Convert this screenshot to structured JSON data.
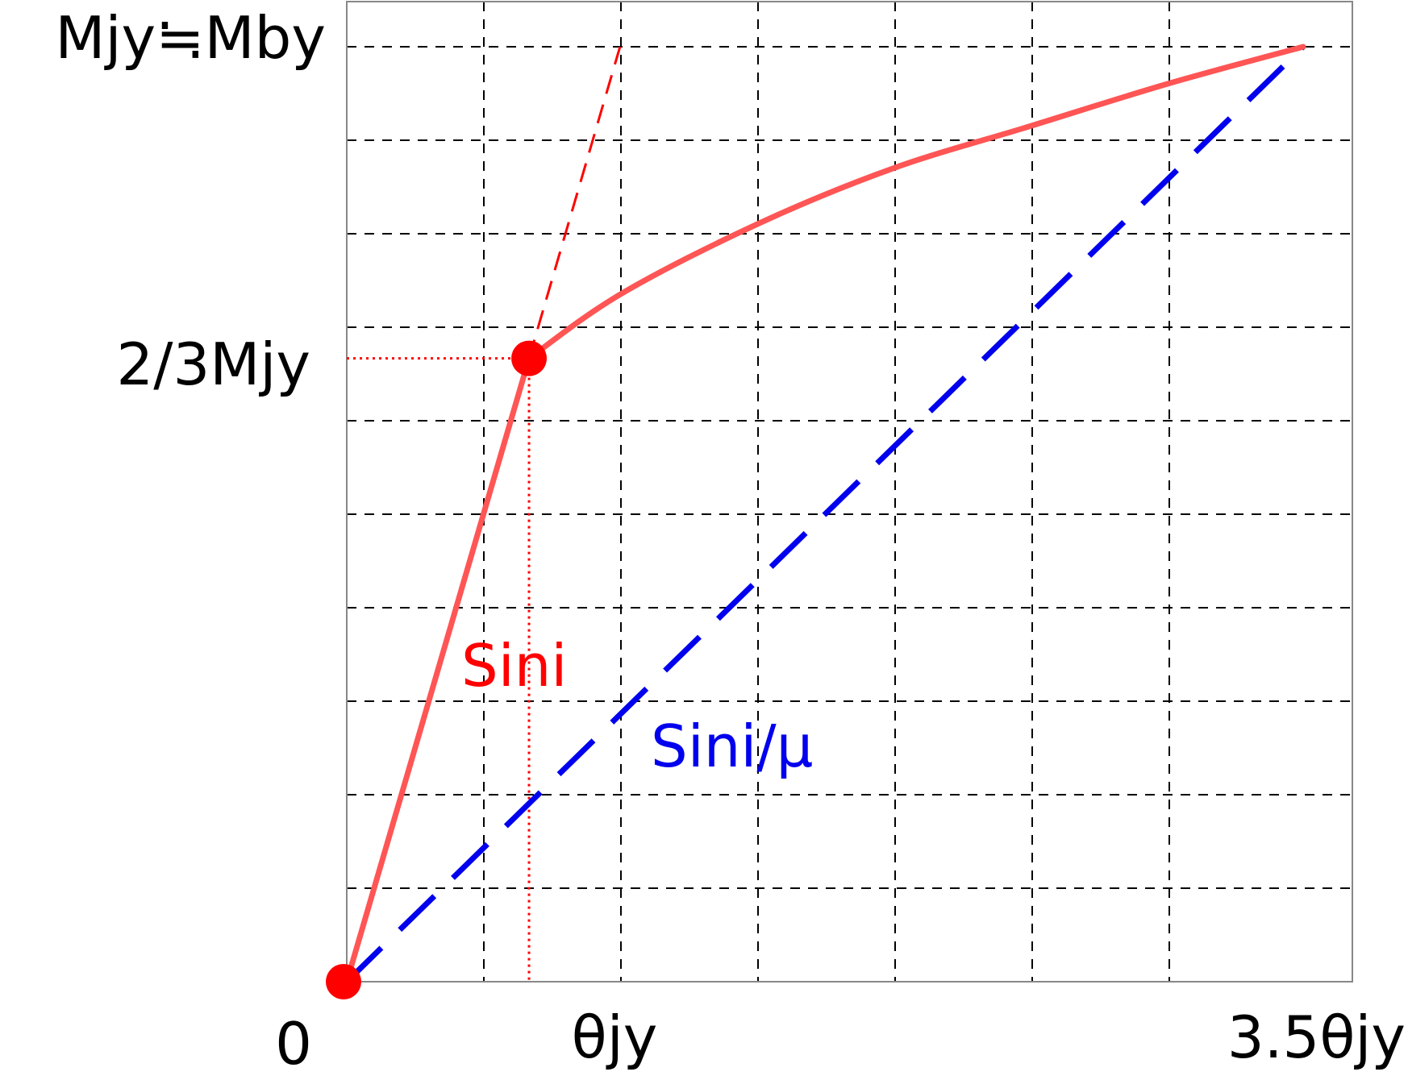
{
  "chart_data": {
    "type": "line",
    "title": "",
    "xlabel": "",
    "ylabel": "",
    "xlim": [
      0,
      3.5
    ],
    "ylim": [
      0,
      1.0
    ],
    "grid": true,
    "x_tick_labels": [
      {
        "x": 0,
        "label": "0"
      },
      {
        "x": 1.0,
        "label": "θjy"
      },
      {
        "x": 3.5,
        "label": "3.5θjy"
      }
    ],
    "y_tick_labels": [
      {
        "y": 0.6667,
        "label": "2/3Mjy"
      },
      {
        "y": 1.0,
        "label": "Mjy≒Mby"
      }
    ],
    "series": [
      {
        "name": "Sini",
        "color": "#ff5555",
        "style": "solid",
        "x": [
          0,
          0.667,
          1.0,
          1.5,
          2.0,
          2.5,
          3.0,
          3.5
        ],
        "y": [
          0,
          0.6667,
          0.735,
          0.81,
          0.87,
          0.915,
          0.96,
          1.0
        ]
      },
      {
        "name": "Sini/μ",
        "color": "#0000ee",
        "style": "dashed",
        "x": [
          0,
          3.5
        ],
        "y": [
          0,
          1.0
        ]
      }
    ],
    "guides": {
      "elastic_extension": {
        "color": "#ff0000",
        "x": [
          0.667,
          1.0
        ],
        "y": [
          0.6667,
          1.0
        ]
      },
      "yield_point": {
        "x": 0.667,
        "y": 0.6667,
        "color": "#ff0000"
      },
      "origin_point": {
        "x": 0,
        "y": 0,
        "color": "#ff0000"
      }
    },
    "annotations": [
      {
        "text": "Sini",
        "color": "#ff0000"
      },
      {
        "text": "Sini/μ",
        "color": "#0000ee"
      }
    ]
  }
}
